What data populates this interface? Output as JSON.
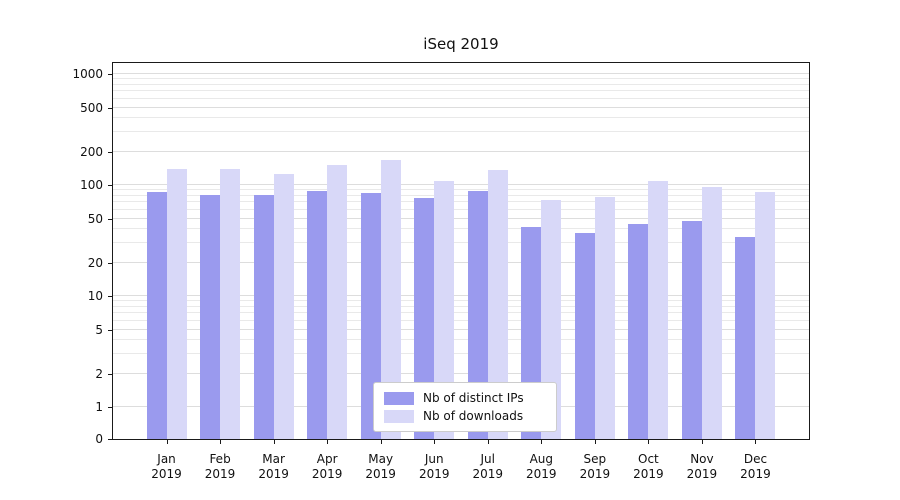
{
  "chart_data": {
    "type": "bar",
    "title": "iSeq 2019",
    "categories": [
      "Jan",
      "Feb",
      "Mar",
      "Apr",
      "May",
      "Jun",
      "Jul",
      "Aug",
      "Sep",
      "Oct",
      "Nov",
      "Dec"
    ],
    "category_year": "2019",
    "series": [
      {
        "name": "Nb of distinct IPs",
        "color": "#9a9aee",
        "values": [
          87,
          81,
          81,
          89,
          85,
          77,
          89,
          42,
          37,
          45,
          48,
          34
        ]
      },
      {
        "name": "Nb of downloads",
        "color": "#d8d8f8",
        "values": [
          140,
          140,
          127,
          152,
          168,
          110,
          136,
          73,
          79,
          110,
          97,
          87
        ]
      }
    ],
    "yscale": "symlog",
    "y_ticks": [
      0,
      1,
      2,
      5,
      10,
      20,
      50,
      100,
      200,
      500,
      1000
    ],
    "ylim": [
      0,
      1200
    ],
    "xlabel": "",
    "ylabel": "",
    "grid": true,
    "legend_position": "lower center",
    "colors": {
      "grid_minor": "#e9e9e9",
      "grid_major": "#dddddd",
      "axis": "#1a1a1a",
      "background": "#ffffff"
    }
  }
}
